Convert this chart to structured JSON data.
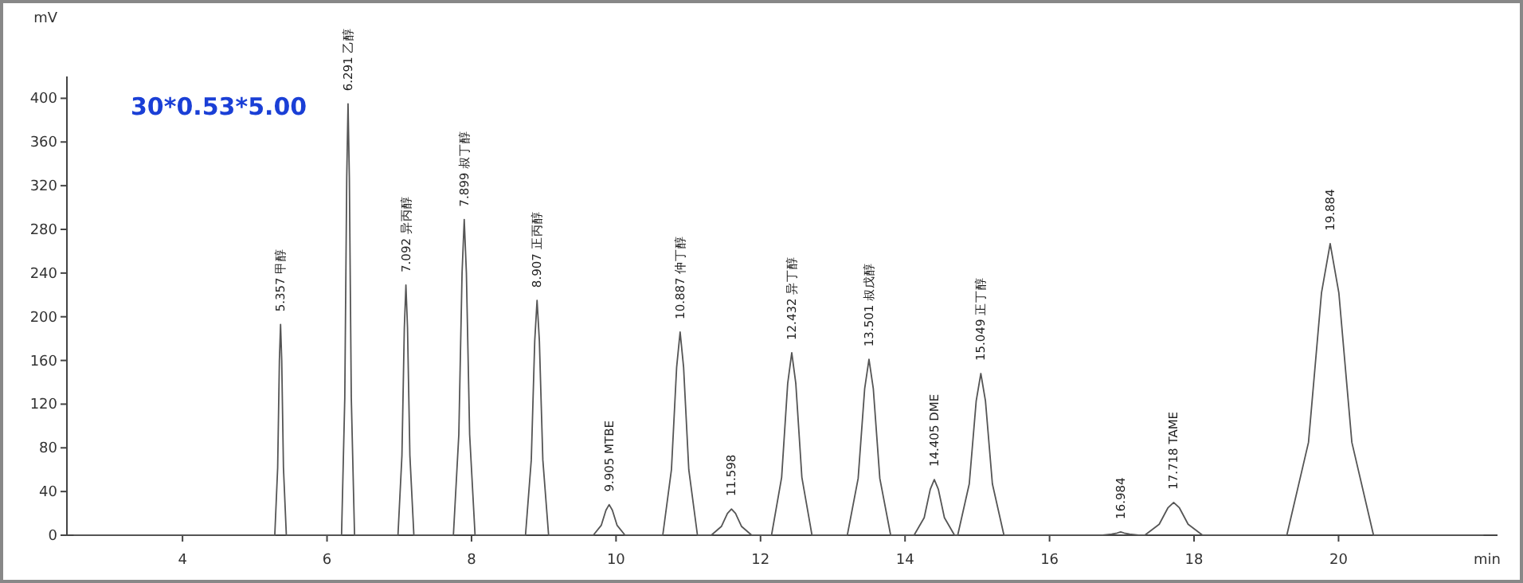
{
  "chart_data": {
    "type": "line",
    "subtitle": "30*0.53*5.00",
    "xlabel": "min",
    "ylabel": "mV",
    "color": "#555555",
    "xlim": [
      2.4,
      22.2
    ],
    "ylim": [
      0,
      420
    ],
    "xticks": [
      4,
      6,
      8,
      10,
      12,
      14,
      16,
      18,
      20
    ],
    "yticks": [
      0,
      40,
      80,
      120,
      160,
      200,
      240,
      280,
      320,
      360,
      400
    ],
    "x": [
      2.5,
      5.277,
      5.317,
      5.341,
      5.357,
      5.373,
      5.397,
      5.437,
      6.201,
      6.246,
      6.273,
      6.291,
      6.309,
      6.336,
      6.381,
      6.982,
      7.037,
      7.07,
      7.092,
      7.114,
      7.147,
      7.202,
      7.749,
      7.824,
      7.869,
      7.899,
      7.929,
      7.974,
      8.049,
      8.747,
      8.827,
      8.875,
      8.907,
      8.939,
      8.987,
      9.067,
      9.685,
      9.795,
      9.861,
      9.905,
      9.949,
      10.015,
      10.125,
      10.647,
      10.767,
      10.839,
      10.887,
      10.935,
      11.007,
      11.127,
      11.318,
      11.458,
      11.542,
      11.598,
      11.654,
      11.738,
      11.878,
      12.152,
      12.292,
      12.376,
      12.432,
      12.488,
      12.572,
      12.712,
      13.201,
      13.351,
      13.441,
      13.501,
      13.561,
      13.651,
      13.801,
      14.125,
      14.265,
      14.349,
      14.405,
      14.461,
      14.545,
      14.685,
      14.729,
      14.889,
      14.985,
      15.049,
      15.113,
      15.209,
      15.369,
      16.734,
      16.859,
      16.934,
      16.984,
      17.034,
      17.109,
      17.234,
      17.318,
      17.518,
      17.638,
      17.718,
      17.798,
      17.918,
      18.118,
      19.284,
      19.584,
      19.764,
      19.884,
      20.004,
      20.184,
      20.484,
      22.0
    ],
    "values": [
      0,
      0,
      62,
      160,
      193,
      160,
      62,
      0,
      0,
      126,
      328,
      395,
      328,
      126,
      0,
      0,
      73,
      190,
      229,
      190,
      73,
      0,
      0,
      92,
      240,
      289,
      240,
      92,
      0,
      0,
      69,
      178,
      215,
      178,
      69,
      0,
      0,
      9,
      23,
      28,
      23,
      9,
      0,
      0,
      60,
      154,
      186,
      154,
      60,
      0,
      0,
      8,
      20,
      24,
      20,
      8,
      0,
      0,
      53,
      139,
      167,
      139,
      53,
      0,
      0,
      52,
      134,
      161,
      134,
      52,
      0,
      0,
      16,
      42,
      51,
      42,
      16,
      0,
      0,
      47,
      123,
      148,
      123,
      47,
      0,
      0,
      1,
      2,
      3,
      2,
      1,
      0,
      0,
      10,
      25,
      30,
      25,
      10,
      0,
      0,
      85,
      222,
      267,
      222,
      85,
      0,
      0
    ],
    "annotations": [
      {
        "text": "5.357 甲醇",
        "x": 5.357,
        "y": 193
      },
      {
        "text": "6.291 乙醇",
        "x": 6.291,
        "y": 395
      },
      {
        "text": "7.092 异丙醇",
        "x": 7.092,
        "y": 229
      },
      {
        "text": "7.899 叔丁醇",
        "x": 7.899,
        "y": 289
      },
      {
        "text": "8.907 正丙醇",
        "x": 8.907,
        "y": 215
      },
      {
        "text": "9.905 MTBE",
        "x": 9.905,
        "y": 28
      },
      {
        "text": "10.887 仲丁醇",
        "x": 10.887,
        "y": 186
      },
      {
        "text": "11.598",
        "x": 11.598,
        "y": 24
      },
      {
        "text": "12.432 异丁醇",
        "x": 12.432,
        "y": 167
      },
      {
        "text": "13.501 叔戊醇",
        "x": 13.501,
        "y": 161
      },
      {
        "text": "14.405 DME",
        "x": 14.405,
        "y": 51
      },
      {
        "text": "15.049 正丁醇",
        "x": 15.049,
        "y": 148
      },
      {
        "text": "16.984",
        "x": 16.984,
        "y": 3
      },
      {
        "text": "17.718 TAME",
        "x": 17.718,
        "y": 30
      },
      {
        "text": "19.884",
        "x": 19.884,
        "y": 267
      }
    ]
  }
}
